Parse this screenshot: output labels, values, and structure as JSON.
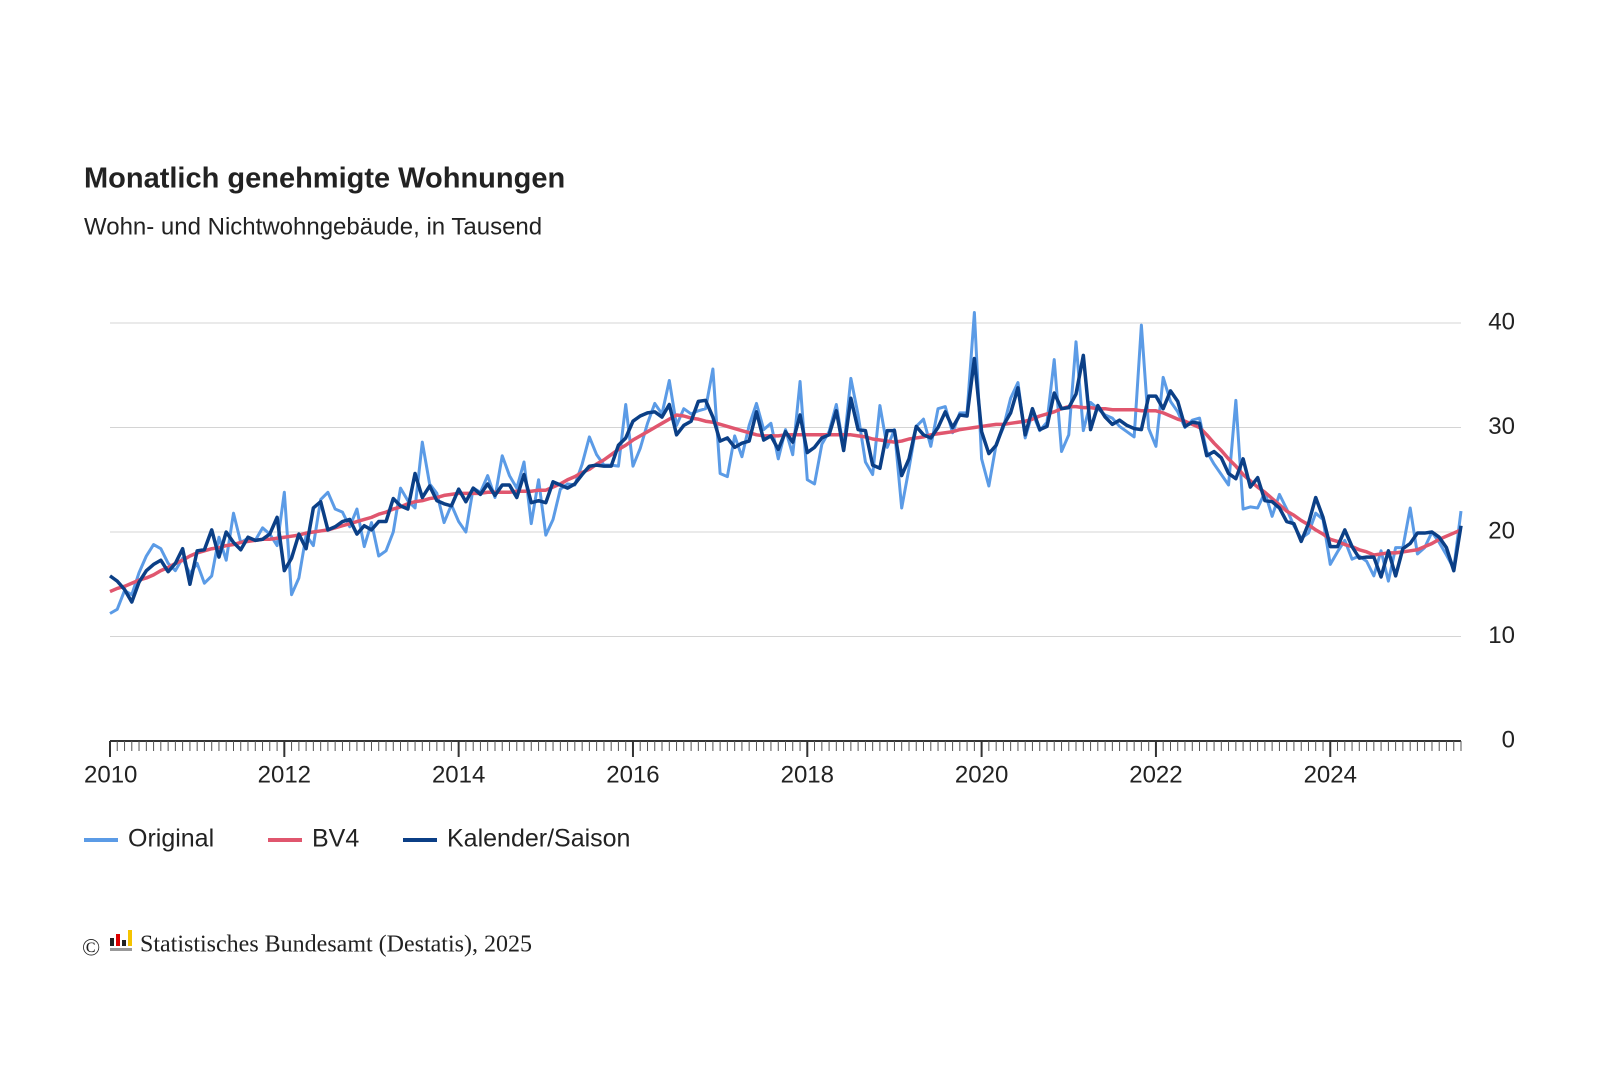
{
  "chart_data": {
    "type": "line",
    "title": "Monatlich genehmigte Wohnungen",
    "subtitle": "Wohn- und Nichtwohngebäude, in Tausend",
    "copyright_symbol": "©",
    "source": "Statistisches Bundesamt (Destatis), 2025",
    "xlim": [
      2010,
      2025.5
    ],
    "xticks": [
      2010,
      2012,
      2014,
      2016,
      2018,
      2020,
      2022,
      2024
    ],
    "ylim": [
      0,
      40
    ],
    "yticks": [
      0,
      10,
      20,
      30,
      40
    ],
    "grid": true,
    "legend": "bottom",
    "x": [
      2010,
      2010.083,
      2010.167,
      2010.25,
      2010.333,
      2010.417,
      2010.5,
      2010.583,
      2010.667,
      2010.75,
      2010.833,
      2010.917,
      2011,
      2011.083,
      2011.167,
      2011.25,
      2011.333,
      2011.417,
      2011.5,
      2011.583,
      2011.667,
      2011.75,
      2011.833,
      2011.917,
      2012,
      2012.083,
      2012.167,
      2012.25,
      2012.333,
      2012.417,
      2012.5,
      2012.583,
      2012.667,
      2012.75,
      2012.833,
      2012.917,
      2013,
      2013.083,
      2013.167,
      2013.25,
      2013.333,
      2013.417,
      2013.5,
      2013.583,
      2013.667,
      2013.75,
      2013.833,
      2013.917,
      2014,
      2014.083,
      2014.167,
      2014.25,
      2014.333,
      2014.417,
      2014.5,
      2014.583,
      2014.667,
      2014.75,
      2014.833,
      2014.917,
      2015,
      2015.083,
      2015.167,
      2015.25,
      2015.333,
      2015.417,
      2015.5,
      2015.583,
      2015.667,
      2015.75,
      2015.833,
      2015.917,
      2016,
      2016.083,
      2016.167,
      2016.25,
      2016.333,
      2016.417,
      2016.5,
      2016.583,
      2016.667,
      2016.75,
      2016.833,
      2016.917,
      2017,
      2017.083,
      2017.167,
      2017.25,
      2017.333,
      2017.417,
      2017.5,
      2017.583,
      2017.667,
      2017.75,
      2017.833,
      2017.917,
      2018,
      2018.083,
      2018.167,
      2018.25,
      2018.333,
      2018.417,
      2018.5,
      2018.583,
      2018.667,
      2018.75,
      2018.833,
      2018.917,
      2019,
      2019.083,
      2019.167,
      2019.25,
      2019.333,
      2019.417,
      2019.5,
      2019.583,
      2019.667,
      2019.75,
      2019.833,
      2019.917,
      2020,
      2020.083,
      2020.167,
      2020.25,
      2020.333,
      2020.417,
      2020.5,
      2020.583,
      2020.667,
      2020.75,
      2020.833,
      2020.917,
      2021,
      2021.083,
      2021.167,
      2021.25,
      2021.333,
      2021.417,
      2021.5,
      2021.583,
      2021.667,
      2021.75,
      2021.833,
      2021.917,
      2022,
      2022.083,
      2022.167,
      2022.25,
      2022.333,
      2022.417,
      2022.5,
      2022.583,
      2022.667,
      2022.75,
      2022.833,
      2022.917,
      2023,
      2023.083,
      2023.167,
      2023.25,
      2023.333,
      2023.417,
      2023.5,
      2023.583,
      2023.667,
      2023.75,
      2023.833,
      2023.917,
      2024,
      2024.083,
      2024.167,
      2024.25,
      2024.333,
      2024.417,
      2024.5,
      2024.583,
      2024.667,
      2024.75,
      2024.833,
      2024.917,
      2025,
      2025.083,
      2025.167,
      2025.25,
      2025.333,
      2025.417,
      2025.5
    ],
    "series": [
      {
        "name": "Original",
        "color": "#5b9be6",
        "width": 3,
        "values": [
          12.2,
          12.6,
          14.4,
          14.0,
          16.1,
          17.7,
          18.8,
          18.4,
          17.0,
          16.3,
          17.5,
          16.0,
          17.0,
          15.1,
          15.8,
          19.5,
          17.3,
          21.8,
          19.0,
          19.4,
          19.2,
          20.4,
          19.8,
          18.7,
          23.8,
          14.0,
          15.6,
          19.7,
          18.7,
          23.1,
          23.8,
          22.2,
          21.9,
          20.5,
          22.2,
          18.6,
          20.9,
          17.7,
          18.2,
          20.0,
          24.2,
          23.0,
          22.3,
          28.6,
          24.6,
          23.7,
          20.9,
          22.6,
          21.0,
          20.0,
          24.2,
          23.8,
          25.4,
          23.3,
          27.3,
          25.4,
          24.2,
          26.7,
          20.8,
          25.0,
          19.7,
          21.2,
          24.1,
          24.6,
          24.5,
          26.5,
          29.1,
          27.4,
          26.4,
          26.4,
          26.3,
          32.2,
          26.3,
          28.0,
          30.4,
          32.3,
          31.3,
          34.5,
          30.2,
          31.8,
          31.3,
          31.6,
          31.8,
          35.6,
          25.6,
          25.3,
          29.2,
          27.2,
          30.2,
          32.3,
          29.8,
          30.4,
          27.0,
          29.8,
          27.4,
          34.4,
          25.0,
          24.6,
          28.4,
          29.6,
          32.2,
          28.0,
          34.7,
          31.2,
          26.7,
          25.5,
          32.1,
          28.1,
          29.8,
          22.3,
          26.1,
          30.1,
          30.8,
          28.2,
          31.8,
          32.0,
          29.5,
          31.4,
          31.4,
          41.0,
          27.0,
          24.4,
          28.4,
          30.0,
          32.8,
          34.3,
          29.0,
          31.4,
          29.7,
          30.5,
          36.5,
          27.7,
          29.3,
          38.2,
          29.7,
          32.4,
          31.8,
          31.2,
          30.9,
          30.1,
          29.6,
          29.1,
          39.8,
          29.9,
          28.2,
          34.8,
          32.5,
          31.5,
          30.0,
          30.7,
          30.9,
          27.7,
          26.5,
          25.5,
          24.5,
          32.6,
          22.2,
          22.4,
          22.3,
          23.8,
          21.5,
          23.6,
          22.2,
          20.6,
          19.4,
          19.9,
          21.8,
          21.2,
          16.9,
          18.1,
          19.2,
          17.4,
          17.7,
          17.2,
          15.8,
          18.2,
          15.3,
          18.5,
          18.5,
          22.3,
          17.9,
          18.5,
          20.0,
          19.0,
          17.8,
          16.5,
          22.0
        ]
      },
      {
        "name": "BV4",
        "color": "#e0566e",
        "width": 3.5,
        "values": [
          14.3,
          14.6,
          14.8,
          15.1,
          15.4,
          15.6,
          15.9,
          16.3,
          16.6,
          17.0,
          17.3,
          17.7,
          18.0,
          18.2,
          18.4,
          18.5,
          18.7,
          18.8,
          19.0,
          19.1,
          19.2,
          19.3,
          19.3,
          19.4,
          19.5,
          19.6,
          19.7,
          19.9,
          20.0,
          20.1,
          20.2,
          20.4,
          20.6,
          20.8,
          21.0,
          21.2,
          21.4,
          21.7,
          21.9,
          22.2,
          22.4,
          22.7,
          22.9,
          23.0,
          23.2,
          23.3,
          23.5,
          23.6,
          23.7,
          23.7,
          23.7,
          23.7,
          23.8,
          23.8,
          23.8,
          23.8,
          23.9,
          23.9,
          23.9,
          24.0,
          24.0,
          24.3,
          24.6,
          25.0,
          25.3,
          25.7,
          26.0,
          26.5,
          26.9,
          27.4,
          27.9,
          28.3,
          28.8,
          29.2,
          29.6,
          30.0,
          30.4,
          30.8,
          31.2,
          31.1,
          30.9,
          30.8,
          30.6,
          30.5,
          30.3,
          30.1,
          29.9,
          29.7,
          29.5,
          29.3,
          29.2,
          29.2,
          29.2,
          29.3,
          29.3,
          29.3,
          29.3,
          29.3,
          29.3,
          29.3,
          29.3,
          29.3,
          29.3,
          29.2,
          29.1,
          28.9,
          28.8,
          28.7,
          28.6,
          28.7,
          28.9,
          29.0,
          29.1,
          29.3,
          29.4,
          29.5,
          29.6,
          29.8,
          29.9,
          30.0,
          30.1,
          30.2,
          30.3,
          30.3,
          30.4,
          30.5,
          30.6,
          30.8,
          31.1,
          31.3,
          31.5,
          31.8,
          32.0,
          32.0,
          31.9,
          31.9,
          31.8,
          31.8,
          31.7,
          31.7,
          31.7,
          31.7,
          31.6,
          31.6,
          31.6,
          31.4,
          31.1,
          30.8,
          30.6,
          30.3,
          30.0,
          29.3,
          28.5,
          27.8,
          27.0,
          26.3,
          25.5,
          24.9,
          24.3,
          23.8,
          23.2,
          22.6,
          22.0,
          21.6,
          21.1,
          20.7,
          20.2,
          19.8,
          19.3,
          19.1,
          18.8,
          18.6,
          18.3,
          18.1,
          17.8,
          17.9,
          18.0,
          18.0,
          18.1,
          18.2,
          18.3,
          18.6,
          18.9,
          19.3,
          19.6,
          19.9,
          20.2
        ]
      },
      {
        "name": "Kalender/Saison",
        "color": "#0b3f86",
        "width": 3.5,
        "values": [
          15.8,
          15.3,
          14.5,
          13.3,
          15.2,
          16.3,
          16.9,
          17.3,
          16.2,
          17.0,
          18.4,
          15.0,
          18.2,
          18.3,
          20.2,
          17.6,
          20.0,
          19.0,
          18.3,
          19.5,
          19.2,
          19.3,
          19.8,
          21.4,
          16.3,
          17.5,
          19.8,
          18.4,
          22.3,
          22.9,
          20.2,
          20.5,
          21.0,
          21.2,
          19.8,
          20.6,
          20.2,
          21.0,
          21.0,
          23.2,
          22.5,
          22.2,
          25.6,
          23.3,
          24.4,
          23.0,
          22.7,
          22.5,
          24.1,
          22.9,
          24.2,
          23.6,
          24.6,
          23.5,
          24.5,
          24.5,
          23.3,
          25.5,
          22.8,
          23.0,
          22.8,
          24.8,
          24.5,
          24.2,
          24.6,
          25.5,
          26.3,
          26.4,
          26.3,
          26.3,
          28.3,
          29.0,
          30.6,
          31.1,
          31.4,
          31.5,
          31.0,
          32.2,
          29.3,
          30.2,
          30.6,
          32.5,
          32.6,
          31.0,
          28.7,
          29.0,
          28.1,
          28.5,
          28.7,
          31.5,
          28.8,
          29.2,
          27.9,
          29.6,
          28.6,
          31.2,
          27.6,
          28.1,
          29.0,
          29.3,
          31.6,
          27.8,
          32.8,
          29.8,
          29.7,
          26.4,
          26.1,
          29.7,
          29.7,
          25.4,
          27.0,
          30.1,
          29.3,
          29.0,
          30.0,
          31.5,
          30.0,
          31.2,
          31.1,
          36.6,
          29.6,
          27.5,
          28.3,
          30.2,
          31.4,
          33.8,
          29.3,
          31.8,
          29.8,
          30.1,
          33.3,
          31.8,
          31.9,
          33.2,
          36.9,
          29.8,
          32.1,
          31.0,
          30.3,
          30.7,
          30.2,
          29.9,
          29.8,
          33.0,
          33.0,
          31.8,
          33.5,
          32.5,
          30.1,
          30.5,
          30.4,
          27.3,
          27.7,
          27.1,
          25.6,
          25.1,
          27.0,
          24.3,
          25.2,
          23.0,
          22.9,
          22.3,
          21.0,
          20.8,
          19.1,
          20.8,
          23.3,
          21.4,
          18.6,
          18.6,
          20.2,
          18.6,
          17.5,
          17.6,
          17.6,
          15.7,
          18.2,
          15.8,
          18.4,
          18.9,
          19.9,
          19.9,
          20.0,
          19.5,
          18.5,
          16.3,
          20.6
        ]
      }
    ]
  }
}
